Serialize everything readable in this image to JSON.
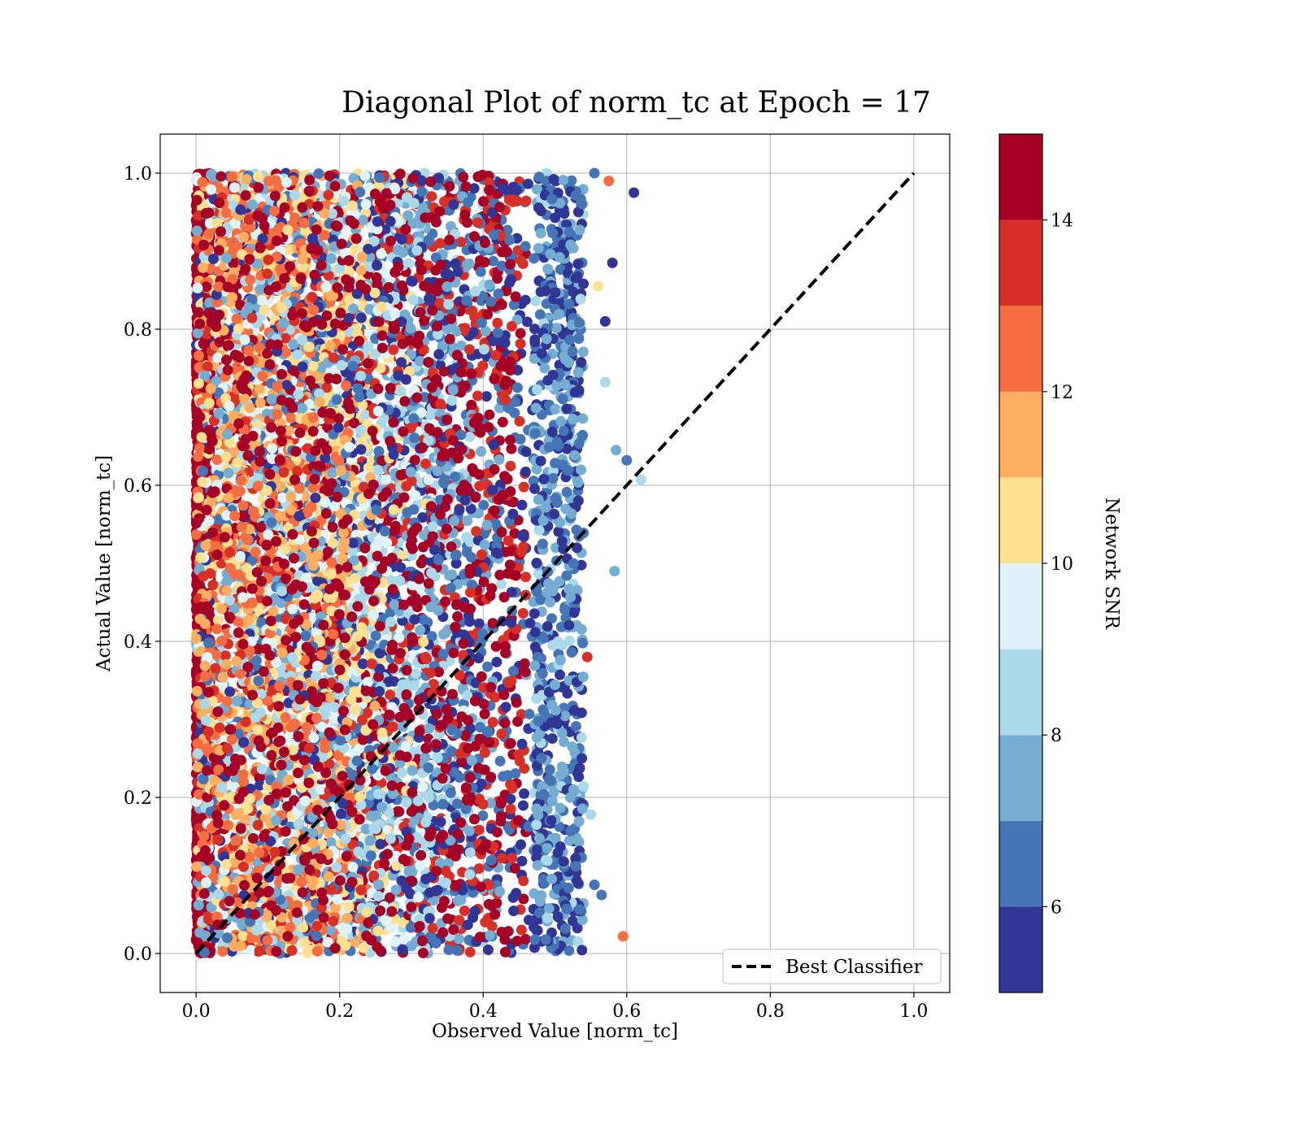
{
  "chart_data": {
    "type": "scatter",
    "title": "Diagonal Plot of norm_tc at Epoch = 17",
    "xlabel": "Observed Value [norm_tc]",
    "ylabel": "Actual Value [norm_tc]",
    "xlim": [
      -0.05,
      1.05
    ],
    "ylim": [
      -0.05,
      1.05
    ],
    "xticks": [
      "0.0",
      "0.2",
      "0.4",
      "0.6",
      "0.8",
      "1.0"
    ],
    "yticks": [
      "0.0",
      "0.2",
      "0.4",
      "0.6",
      "0.8",
      "1.0"
    ],
    "grid": true,
    "colorbar": {
      "label": "Network SNR",
      "range": [
        5,
        15
      ],
      "ticks": [
        "6",
        "8",
        "10",
        "12",
        "14"
      ],
      "bins": [
        {
          "from": 5,
          "to": 6,
          "color": "#313695"
        },
        {
          "from": 6,
          "to": 7,
          "color": "#4575b4"
        },
        {
          "from": 7,
          "to": 8,
          "color": "#74add1"
        },
        {
          "from": 8,
          "to": 9,
          "color": "#abd9e9"
        },
        {
          "from": 9,
          "to": 10,
          "color": "#e0f3f8"
        },
        {
          "from": 10,
          "to": 11,
          "color": "#fee090"
        },
        {
          "from": 11,
          "to": 12,
          "color": "#fdae61"
        },
        {
          "from": 12,
          "to": 13,
          "color": "#f46d43"
        },
        {
          "from": 13,
          "to": 14,
          "color": "#d73027"
        },
        {
          "from": 14,
          "to": 15,
          "color": "#a50026"
        }
      ]
    },
    "reference_line": {
      "name": "Best Classifier",
      "x": [
        0.0,
        1.0
      ],
      "y": [
        0.0,
        1.0
      ],
      "style": "dashed",
      "color": "#000000"
    },
    "legend": {
      "entries": [
        "Best Classifier"
      ],
      "position": "lower-right"
    },
    "scatter_description": {
      "x_range": [
        0.0,
        0.62
      ],
      "y_range": [
        0.0,
        1.0
      ],
      "color_trend": "high SNR (dark red) concentrated near x = 0; SNR decreases toward blue as observed value increases toward x ≈ 0.55"
    },
    "points": [
      {
        "x": 0.61,
        "y": 0.975,
        "snr": 5.2
      },
      {
        "x": 0.575,
        "y": 0.99,
        "snr": 12.5
      },
      {
        "x": 0.58,
        "y": 0.885,
        "snr": 5.3
      },
      {
        "x": 0.57,
        "y": 0.81,
        "snr": 5.4
      },
      {
        "x": 0.6,
        "y": 0.632,
        "snr": 6.5
      },
      {
        "x": 0.62,
        "y": 0.607,
        "snr": 8.5
      },
      {
        "x": 0.585,
        "y": 0.645,
        "snr": 7.5
      },
      {
        "x": 0.583,
        "y": 0.49,
        "snr": 7.5
      },
      {
        "x": 0.595,
        "y": 0.022,
        "snr": 12.5
      },
      {
        "x": 0.565,
        "y": 0.075,
        "snr": 6.5
      },
      {
        "x": 0.555,
        "y": 0.088,
        "snr": 6.6
      },
      {
        "x": 0.55,
        "y": 0.178,
        "snr": 8.7
      },
      {
        "x": 0.555,
        "y": 1.0,
        "snr": 6.2
      },
      {
        "x": 0.545,
        "y": 0.38,
        "snr": 13.5
      },
      {
        "x": 0.57,
        "y": 0.732,
        "snr": 8.5
      },
      {
        "x": 0.56,
        "y": 0.855,
        "snr": 10.5
      }
    ]
  }
}
